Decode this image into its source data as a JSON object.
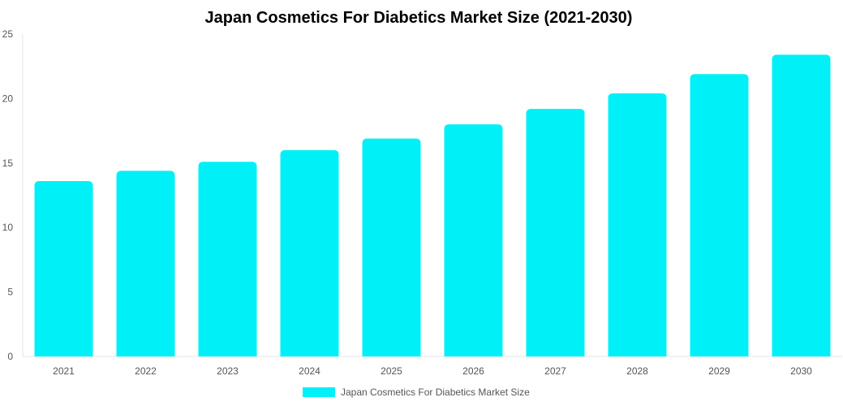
{
  "chart_data": {
    "type": "bar",
    "title": "Japan Cosmetics For Diabetics Market Size (2021-2030)",
    "xlabel": "",
    "ylabel": "",
    "categories": [
      "2021",
      "2022",
      "2023",
      "2024",
      "2025",
      "2026",
      "2027",
      "2028",
      "2029",
      "2030"
    ],
    "series": [
      {
        "name": "Japan Cosmetics For Diabetics Market Size",
        "values": [
          13.6,
          14.4,
          15.1,
          16.0,
          16.9,
          18.0,
          19.2,
          20.4,
          21.9,
          23.4
        ],
        "color": "#00f0f8"
      }
    ],
    "ylim": [
      0,
      25
    ],
    "yticks": [
      0,
      5,
      10,
      15,
      20,
      25
    ],
    "grid": false,
    "legend_position": "bottom-center"
  }
}
